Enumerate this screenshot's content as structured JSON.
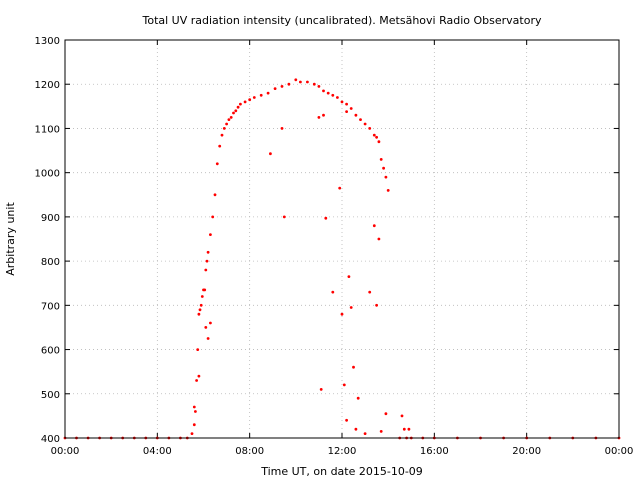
{
  "chart_data": {
    "type": "scatter",
    "title": "Total UV radiation intensity (uncalibrated). Metsähovi Radio Observatory",
    "xlabel": "Time UT, on date 2015-10-09",
    "ylabel": "Arbitrary unit",
    "xlim": [
      0,
      24
    ],
    "ylim": [
      400,
      1300
    ],
    "x_ticks": [
      {
        "value": 0,
        "label": "00:00"
      },
      {
        "value": 4,
        "label": "04:00"
      },
      {
        "value": 8,
        "label": "08:00"
      },
      {
        "value": 12,
        "label": "12:00"
      },
      {
        "value": 16,
        "label": "16:00"
      },
      {
        "value": 20,
        "label": "20:00"
      },
      {
        "value": 24,
        "label": "00:00"
      }
    ],
    "y_ticks": [
      400,
      500,
      600,
      700,
      800,
      900,
      1000,
      1100,
      1200,
      1300
    ],
    "grid": true,
    "marker_color": "#ff0000",
    "series": [
      {
        "x_hours": [
          0.0,
          0.5,
          1.0,
          1.5,
          2.0,
          2.5,
          3.0,
          3.5,
          4.0,
          4.5,
          5.0,
          5.3,
          5.5,
          5.6,
          5.65,
          5.7,
          5.75,
          5.8,
          5.85,
          5.9,
          5.95,
          6.0,
          6.05,
          6.1,
          6.15,
          6.2,
          6.3,
          6.4,
          6.5,
          6.6,
          6.7,
          6.8,
          6.9,
          7.0,
          7.1,
          7.2,
          7.3,
          7.4,
          7.5,
          7.6,
          7.8,
          8.0,
          8.2,
          8.5,
          8.8,
          9.1,
          9.4,
          9.7,
          10.0,
          10.2,
          10.5,
          10.8,
          11.0,
          11.2,
          11.4,
          11.6,
          11.8,
          12.0,
          12.2,
          12.4,
          12.6,
          12.8,
          13.0,
          13.2,
          13.4,
          13.5,
          13.6,
          13.7,
          13.8,
          13.9,
          14.0,
          14.5,
          14.8,
          15.0,
          15.5,
          16.0,
          17.0,
          18.0,
          19.0,
          20.0,
          21.0,
          22.0,
          23.0,
          24.0,
          8.9,
          9.4,
          9.5,
          11.1,
          11.2,
          11.3,
          11.6,
          11.9,
          12.0,
          12.1,
          12.3,
          12.4,
          12.5,
          12.7,
          13.2,
          13.4,
          13.5,
          13.6,
          13.9,
          14.6,
          14.7,
          5.6,
          5.8,
          6.1,
          6.2,
          6.3,
          12.2,
          12.6,
          13.0,
          13.7,
          14.9,
          11.0,
          12.2
        ],
        "y_values": [
          400,
          400,
          400,
          400,
          400,
          400,
          400,
          400,
          400,
          400,
          400,
          400,
          410,
          430,
          460,
          530,
          600,
          680,
          690,
          700,
          720,
          735,
          735,
          780,
          800,
          820,
          860,
          900,
          950,
          1020,
          1060,
          1085,
          1100,
          1110,
          1120,
          1125,
          1135,
          1140,
          1148,
          1155,
          1160,
          1165,
          1170,
          1175,
          1180,
          1190,
          1195,
          1200,
          1210,
          1205,
          1205,
          1200,
          1195,
          1185,
          1180,
          1175,
          1170,
          1160,
          1155,
          1145,
          1130,
          1120,
          1110,
          1100,
          1085,
          1080,
          1070,
          1030,
          1010,
          990,
          960,
          400,
          400,
          400,
          400,
          400,
          400,
          400,
          400,
          400,
          400,
          400,
          400,
          400,
          1043,
          1100,
          900,
          510,
          1130,
          897,
          730,
          965,
          680,
          520,
          765,
          695,
          560,
          490,
          730,
          880,
          700,
          850,
          455,
          450,
          420,
          470,
          540,
          650,
          625,
          660,
          440,
          420,
          410,
          415,
          420,
          1125,
          1138
        ]
      }
    ]
  }
}
